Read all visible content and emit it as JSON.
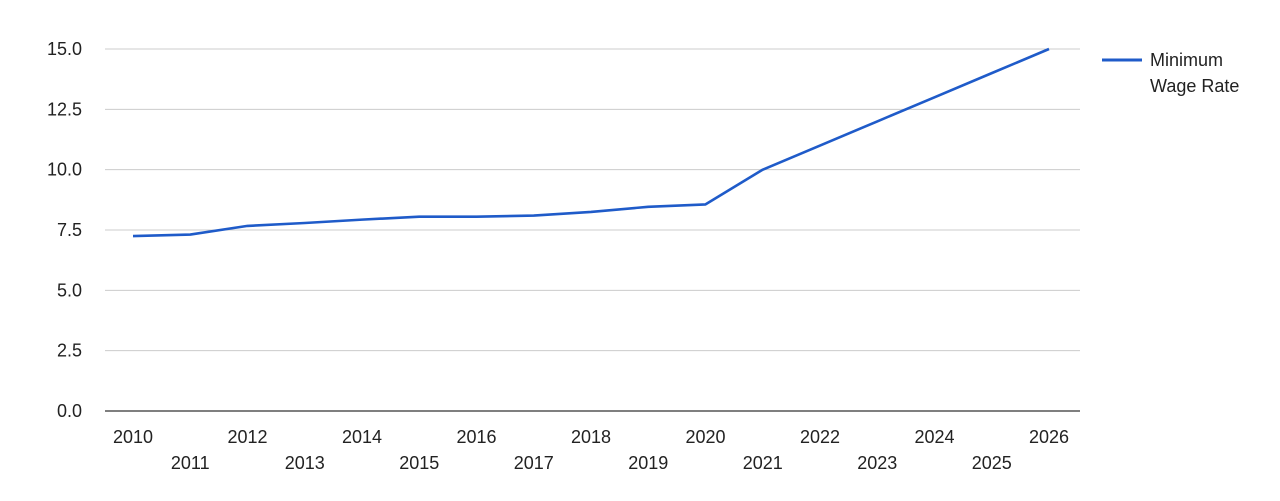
{
  "chart_data": {
    "type": "line",
    "x": [
      2010,
      2011,
      2012,
      2013,
      2014,
      2015,
      2016,
      2017,
      2018,
      2019,
      2020,
      2021,
      2022,
      2023,
      2024,
      2025,
      2026
    ],
    "x_tick_labels": [
      "2010",
      "2011",
      "2012",
      "2013",
      "2014",
      "2015",
      "2016",
      "2017",
      "2018",
      "2019",
      "2020",
      "2021",
      "2022",
      "2023",
      "2024",
      "2025",
      "2026"
    ],
    "series": [
      {
        "name": "Minimum Wage Rate",
        "color": "#1f5bc9",
        "values": [
          7.25,
          7.31,
          7.67,
          7.79,
          7.93,
          8.05,
          8.05,
          8.1,
          8.25,
          8.46,
          8.56,
          10.0,
          11.0,
          12.0,
          13.0,
          14.0,
          15.0
        ]
      }
    ],
    "y_tick_labels": [
      "0.0",
      "2.5",
      "5.0",
      "7.5",
      "10.0",
      "12.5",
      "15.0"
    ],
    "y_ticks": [
      0,
      2.5,
      5,
      7.5,
      10,
      12.5,
      15
    ],
    "ylim": [
      0,
      15
    ],
    "xlim": [
      2010,
      2026
    ],
    "grid": true,
    "legend_position": "right",
    "legend_lines": [
      "Minimum",
      "Wage Rate"
    ],
    "title": "",
    "xlabel": "",
    "ylabel": ""
  }
}
